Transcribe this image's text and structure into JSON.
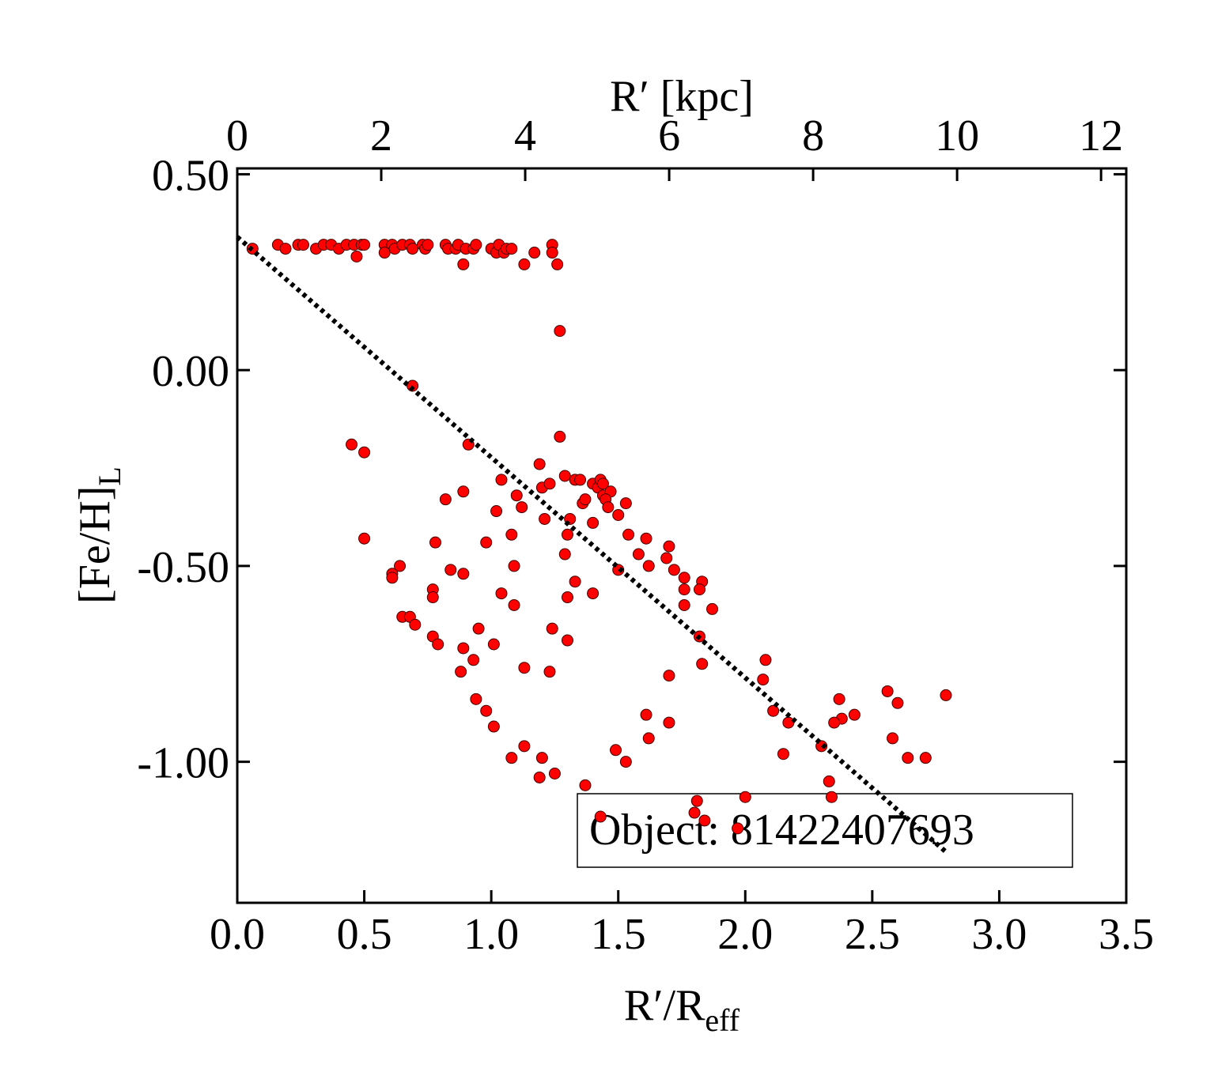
{
  "chart_data": {
    "type": "scatter",
    "xlabel": "R′/R",
    "xlabel_sub": "eff",
    "x2label": "R′ [kpc]",
    "ylabel": "[Fe/H]",
    "ylabel_sub": "L",
    "annotation": "Object: 81422407693",
    "color": "#ff0000",
    "xlim": [
      0,
      3.5
    ],
    "xticks": [
      {
        "value": 0,
        "label": "0.0"
      },
      {
        "value": 0.5,
        "label": "0.5"
      },
      {
        "value": 1,
        "label": "1.0"
      },
      {
        "value": 1.5,
        "label": "1.5"
      },
      {
        "value": 2,
        "label": "2.0"
      },
      {
        "value": 2.5,
        "label": "2.5"
      },
      {
        "value": 3,
        "label": "3.0"
      },
      {
        "value": 3.5,
        "label": "3.5"
      }
    ],
    "x2lim": [
      0,
      12.35
    ],
    "x2ticks": [
      0,
      2,
      4,
      6,
      8,
      10,
      12
    ],
    "ylim": [
      -1.36,
      0.515
    ],
    "yticks": [
      {
        "value": 0.5,
        "label": "0.50"
      },
      {
        "value": 0,
        "label": "0.00"
      },
      {
        "value": -0.5,
        "label": "-0.50"
      },
      {
        "value": -1,
        "label": "-1.00"
      }
    ],
    "x": [
      0.06,
      0.16,
      0.19,
      0.24,
      0.26,
      0.31,
      0.34,
      0.37,
      0.4,
      0.43,
      0.46,
      0.47,
      0.49,
      0.5,
      0.58,
      0.58,
      0.61,
      0.62,
      0.65,
      0.68,
      0.69,
      0.73,
      0.74,
      0.75,
      0.82,
      0.83,
      0.86,
      0.87,
      0.89,
      0.9,
      0.93,
      0.94,
      1.0,
      1.02,
      1.03,
      1.05,
      1.06,
      1.08,
      1.13,
      1.17,
      1.24,
      1.24,
      1.26,
      1.27,
      0.69,
      1.27,
      0.45,
      0.5,
      0.91,
      1.19,
      1.04,
      1.2,
      1.23,
      1.29,
      1.33,
      1.35,
      0.89,
      0.82,
      1.1,
      1.12,
      1.02,
      1.21,
      1.31,
      1.36,
      1.37,
      1.4,
      1.42,
      1.43,
      1.44,
      1.44,
      1.47,
      1.45,
      1.46,
      1.5,
      1.53,
      1.4,
      1.54,
      1.3,
      1.08,
      0.98,
      0.78,
      0.5,
      1.29,
      1.61,
      1.7,
      1.69,
      1.58,
      1.62,
      1.09,
      1.5,
      0.64,
      0.61,
      0.61,
      0.84,
      0.89,
      1.72,
      1.76,
      1.83,
      1.82,
      1.76,
      1.33,
      0.77,
      0.77,
      1.04,
      1.4,
      1.3,
      1.09,
      1.76,
      1.87,
      0.65,
      0.68,
      0.7,
      0.95,
      1.24,
      1.82,
      0.77,
      1.3,
      0.79,
      1.01,
      0.89,
      0.93,
      2.08,
      1.83,
      1.13,
      1.23,
      0.88,
      1.7,
      2.07,
      2.56,
      2.79,
      2.37,
      0.94,
      2.6,
      0.98,
      2.11,
      2.43,
      1.61,
      2.38,
      2.35,
      2.17,
      1.7,
      1.01,
      2.58,
      1.62,
      1.13,
      2.3,
      1.49,
      2.15,
      2.71,
      2.64,
      1.08,
      1.2,
      1.53,
      1.25,
      1.19,
      2.33,
      1.37,
      2.34,
      2.0,
      1.81,
      1.8,
      1.43,
      1.84,
      1.97
    ],
    "values": [
      0.31,
      0.32,
      0.31,
      0.32,
      0.32,
      0.31,
      0.32,
      0.32,
      0.31,
      0.32,
      0.32,
      0.29,
      0.32,
      0.32,
      0.32,
      0.3,
      0.32,
      0.31,
      0.32,
      0.32,
      0.31,
      0.32,
      0.31,
      0.32,
      0.32,
      0.31,
      0.31,
      0.32,
      0.27,
      0.31,
      0.31,
      0.32,
      0.31,
      0.3,
      0.32,
      0.3,
      0.31,
      0.31,
      0.27,
      0.3,
      0.32,
      0.3,
      0.27,
      0.1,
      -0.04,
      -0.17,
      -0.19,
      -0.21,
      -0.19,
      -0.24,
      -0.28,
      -0.3,
      -0.29,
      -0.27,
      -0.28,
      -0.28,
      -0.31,
      -0.33,
      -0.32,
      -0.35,
      -0.36,
      -0.38,
      -0.38,
      -0.34,
      -0.33,
      -0.29,
      -0.3,
      -0.28,
      -0.29,
      -0.32,
      -0.31,
      -0.33,
      -0.35,
      -0.37,
      -0.34,
      -0.39,
      -0.42,
      -0.42,
      -0.42,
      -0.44,
      -0.44,
      -0.43,
      -0.47,
      -0.43,
      -0.45,
      -0.48,
      -0.47,
      -0.5,
      -0.5,
      -0.51,
      -0.5,
      -0.52,
      -0.53,
      -0.51,
      -0.52,
      -0.51,
      -0.53,
      -0.54,
      -0.56,
      -0.56,
      -0.54,
      -0.56,
      -0.58,
      -0.57,
      -0.57,
      -0.58,
      -0.6,
      -0.6,
      -0.61,
      -0.63,
      -0.63,
      -0.65,
      -0.66,
      -0.66,
      -0.68,
      -0.68,
      -0.69,
      -0.7,
      -0.7,
      -0.71,
      -0.74,
      -0.74,
      -0.75,
      -0.76,
      -0.77,
      -0.77,
      -0.78,
      -0.79,
      -0.82,
      -0.83,
      -0.84,
      -0.84,
      -0.85,
      -0.87,
      -0.87,
      -0.88,
      -0.88,
      -0.89,
      -0.9,
      -0.9,
      -0.9,
      -0.91,
      -0.94,
      -0.94,
      -0.96,
      -0.96,
      -0.97,
      -0.98,
      -0.99,
      -0.99,
      -0.99,
      -0.99,
      -1.0,
      -1.03,
      -1.04,
      -1.05,
      -1.06,
      -1.09,
      -1.09,
      -1.1,
      -1.13,
      -1.14,
      -1.15,
      -1.17
    ],
    "fit_line": {
      "x": [
        0,
        2.79
      ],
      "y": [
        0.34,
        -1.23
      ]
    }
  }
}
